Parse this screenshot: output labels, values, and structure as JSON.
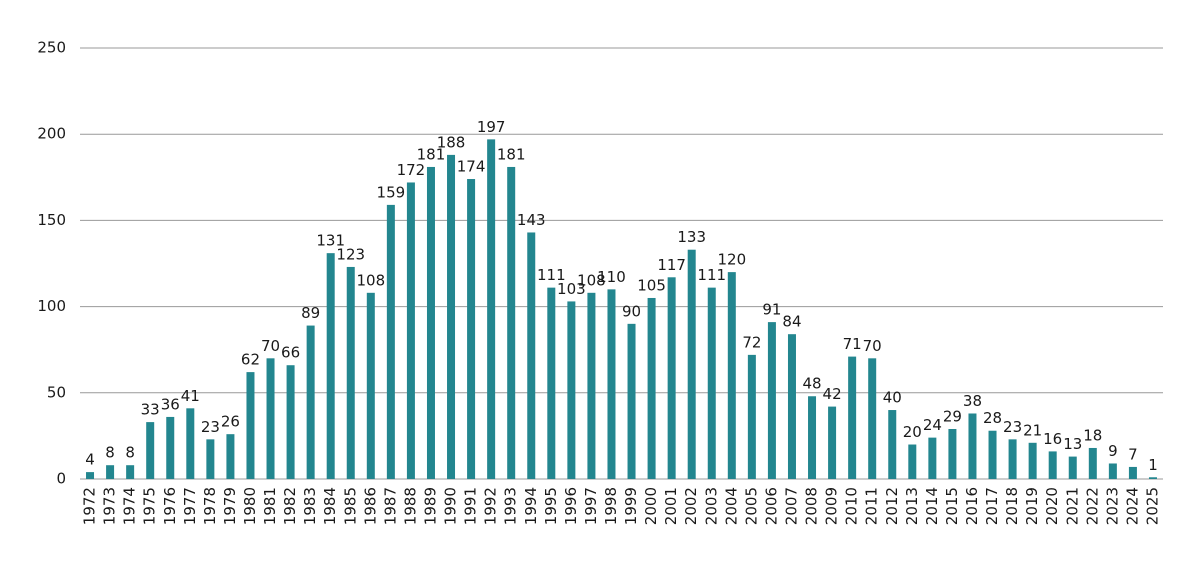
{
  "chart_data": {
    "type": "bar",
    "categories": [
      "1972",
      "1973",
      "1974",
      "1975",
      "1976",
      "1977",
      "1978",
      "1979",
      "1980",
      "1981",
      "1982",
      "1983",
      "1984",
      "1985",
      "1986",
      "1987",
      "1988",
      "1989",
      "1990",
      "1991",
      "1992",
      "1993",
      "1994",
      "1995",
      "1996",
      "1997",
      "1998",
      "1999",
      "2000",
      "2001",
      "2002",
      "2003",
      "2004",
      "2005",
      "2006",
      "2007",
      "2008",
      "2009",
      "2010",
      "2011",
      "2012",
      "2013",
      "2014",
      "2015",
      "2016",
      "2017",
      "2018",
      "2019",
      "2020",
      "2021",
      "2022",
      "2023",
      "2024",
      "2025"
    ],
    "values": [
      4,
      8,
      8,
      33,
      36,
      41,
      23,
      26,
      62,
      70,
      66,
      89,
      131,
      123,
      108,
      159,
      172,
      181,
      188,
      174,
      197,
      181,
      143,
      111,
      103,
      108,
      110,
      90,
      105,
      117,
      133,
      111,
      120,
      72,
      91,
      84,
      48,
      42,
      71,
      70,
      40,
      20,
      24,
      29,
      38,
      28,
      23,
      21,
      16,
      13,
      18,
      9,
      7,
      1
    ],
    "color": "#23868f",
    "ylim": [
      0,
      250
    ],
    "yticks": [
      0,
      50,
      100,
      150,
      200,
      250
    ],
    "grid": true
  }
}
